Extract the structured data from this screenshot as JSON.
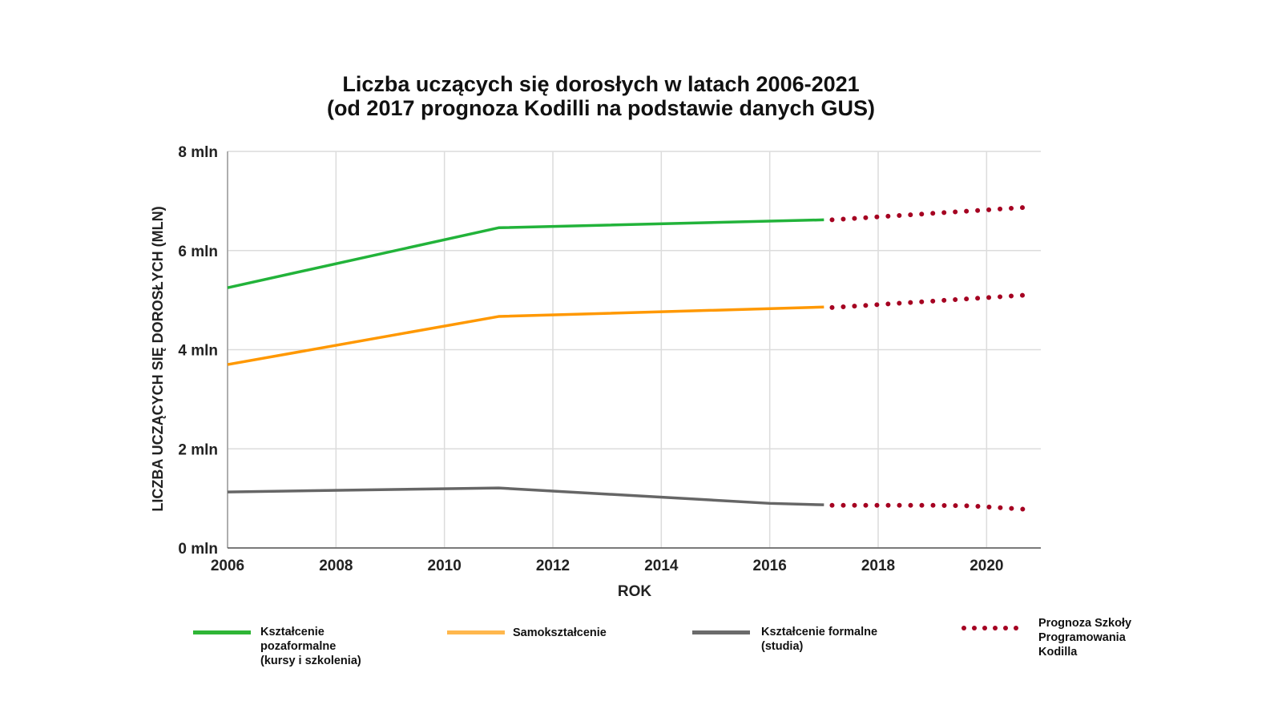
{
  "chart_data": {
    "type": "line",
    "title": [
      "Liczba uczących się dorosłych w latach 2006-2021",
      "(od 2017 prognoza Kodilli na podstawie danych GUS)"
    ],
    "xlabel": "ROK",
    "ylabel": "LICZBA UCZĄCYCH SIĘ DOROSŁYCH (MLN)",
    "xlim": [
      2006,
      2021
    ],
    "ylim": [
      0,
      8
    ],
    "x_ticks": [
      2006,
      2008,
      2010,
      2012,
      2014,
      2016,
      2018,
      2020
    ],
    "x_tick_labels": [
      "2006",
      "2008",
      "2010",
      "2012",
      "2014",
      "2016",
      "2018",
      "2020"
    ],
    "y_ticks": [
      0,
      2,
      4,
      6,
      8
    ],
    "y_tick_labels": [
      "0 mln",
      "2 mln",
      "4 mln",
      "6 mln",
      "8 mln"
    ],
    "grid": true,
    "legend_position": "bottom",
    "series": [
      {
        "name": "Kształcenie pozaformalne (kursy i szkolenia)",
        "color": "#22b33a",
        "style": "solid",
        "x": [
          2006,
          2011,
          2017
        ],
        "values": [
          5.25,
          6.46,
          6.62
        ]
      },
      {
        "name": "Samokształcenie",
        "color": "#ff9800",
        "style": "solid",
        "x": [
          2006,
          2011,
          2017
        ],
        "values": [
          3.7,
          4.67,
          4.86
        ]
      },
      {
        "name": "Kształcenie formalne (studia)",
        "color": "#666666",
        "style": "solid",
        "x": [
          2006,
          2011,
          2016,
          2017
        ],
        "values": [
          1.13,
          1.21,
          0.9,
          0.87
        ]
      },
      {
        "name": "Prognoza Szkoły Programowania Kodilla",
        "color": "#a50021",
        "style": "dotted",
        "segments": [
          {
            "x": [
              2017.15,
              2020.85
            ],
            "values": [
              6.62,
              6.88
            ]
          },
          {
            "x": [
              2017.15,
              2020.85
            ],
            "values": [
              4.85,
              5.11
            ]
          },
          {
            "x": [
              2017.15,
              2019.0,
              2019.7,
              2020.85
            ],
            "values": [
              0.86,
              0.86,
              0.85,
              0.77
            ]
          }
        ]
      }
    ]
  },
  "legend": [
    {
      "label": "Kształcenie\npozaformalne\n(kursy i szkolenia)",
      "color": "#2fb536"
    },
    {
      "label": "Samokształcenie",
      "color": "#ffb74d"
    },
    {
      "label": "Kształcenie formalne\n(studia)",
      "color": "#6b6b6b"
    },
    {
      "label": "Prognoza Szkoły\nProgramowania\nKodilla",
      "color": "#a50021"
    }
  ]
}
